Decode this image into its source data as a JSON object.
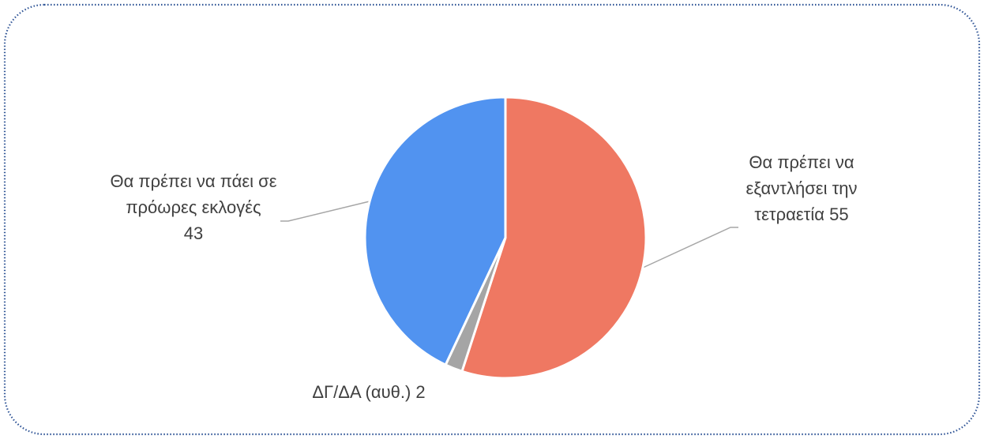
{
  "chart_data": {
    "type": "pie",
    "categories": [
      "Θα πρέπει να εξαντλήσει την τετραετία",
      "ΔΓ/ΔΑ (αυθ.)",
      "Θα πρέπει να πάει σε πρόωρες εκλογές"
    ],
    "values": [
      55,
      2,
      43
    ],
    "colors": [
      "#ef7862",
      "#a5a5a5",
      "#5193f0"
    ]
  }
}
